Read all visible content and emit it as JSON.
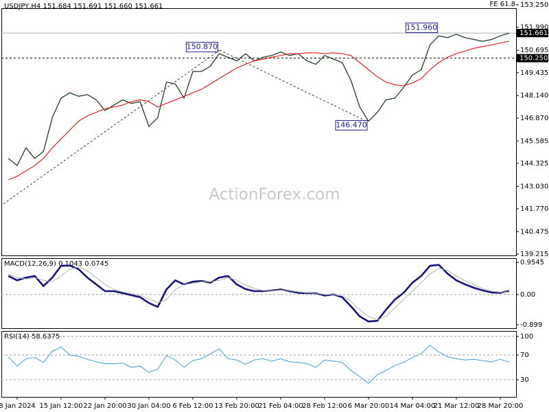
{
  "chart_data": [
    {
      "type": "line",
      "title": "USDJPY,H4  151.684 151.691 151.660 151.661",
      "corner_label": "FE 61.8",
      "watermark": "ActionForex.com",
      "categories": [
        null,
        "8 Jan 2024",
        null,
        null,
        null,
        null,
        "15 Jan 12:00",
        null,
        null,
        null,
        null,
        "22 Jan 20:00",
        null,
        null,
        null,
        null,
        "30 Jan 04:00",
        null,
        null,
        null,
        null,
        "6 Feb 12:00",
        null,
        null,
        null,
        null,
        "13 Feb 20:00",
        null,
        null,
        null,
        null,
        "21 Feb 04:00",
        null,
        null,
        null,
        null,
        "28 Feb 12:00",
        null,
        null,
        null,
        null,
        "6 Mar 20:00",
        null,
        null,
        null,
        null,
        "14 Mar 04:00",
        null,
        null,
        null,
        null,
        "21 Mar 12:00",
        null,
        null,
        null,
        null,
        "28 Mar 20:00",
        null
      ],
      "series": [
        {
          "color": "#1f3d1f",
          "width": 1.3,
          "values": [
            144.6,
            144.2,
            145.2,
            144.6,
            145.0,
            146.9,
            148.0,
            148.3,
            148.1,
            148.2,
            147.9,
            147.3,
            147.6,
            147.9,
            147.7,
            147.8,
            146.4,
            146.9,
            148.9,
            148.8,
            148.0,
            149.5,
            149.5,
            149.8,
            150.5,
            150.3,
            150.1,
            150.5,
            150.1,
            150.3,
            150.4,
            150.6,
            150.4,
            150.5,
            150.1,
            149.9,
            150.4,
            150.2,
            150.0,
            149.0,
            147.5,
            146.7,
            147.2,
            147.9,
            148.0,
            148.6,
            149.3,
            149.6,
            151.0,
            151.5,
            151.4,
            151.6,
            151.4,
            151.3,
            151.2,
            151.3,
            151.5,
            151.661
          ]
        },
        {
          "color": "#e0202a",
          "width": 1.2,
          "values": [
            143.4,
            143.6,
            143.9,
            144.2,
            144.6,
            145.2,
            145.7,
            146.2,
            146.7,
            147.0,
            147.2,
            147.4,
            147.5,
            147.6,
            147.8,
            147.9,
            147.8,
            147.5,
            147.7,
            147.9,
            148.1,
            148.3,
            148.5,
            148.8,
            149.1,
            149.4,
            149.7,
            149.9,
            150.1,
            150.2,
            150.3,
            150.4,
            150.5,
            150.5,
            150.55,
            150.55,
            150.5,
            150.55,
            150.5,
            150.4,
            150.0,
            149.6,
            149.2,
            148.9,
            148.75,
            148.7,
            148.85,
            149.1,
            149.6,
            150.0,
            150.3,
            150.5,
            150.65,
            150.8,
            150.9,
            151.0,
            151.1,
            151.2
          ]
        }
      ],
      "ylim": [
        139.14,
        153.06
      ],
      "yticks": [
        {
          "value": 153.25,
          "label": "153.250"
        },
        {
          "value": 151.99,
          "label": "151.990"
        },
        {
          "value": 150.695,
          "label": "150.695"
        },
        {
          "value": 149.435,
          "label": "149.435"
        },
        {
          "value": 148.14,
          "label": "148.140"
        },
        {
          "value": 146.87,
          "label": "146.870"
        },
        {
          "value": 145.585,
          "label": "145.585"
        },
        {
          "value": 144.325,
          "label": "144.325"
        },
        {
          "value": 143.03,
          "label": "143.030"
        },
        {
          "value": 141.77,
          "label": "141.770"
        },
        {
          "value": 140.475,
          "label": "140.475"
        },
        {
          "value": 139.215,
          "label": "139.215"
        }
      ],
      "levels": [
        {
          "value": 151.661,
          "label": "151.661",
          "style": "solid"
        },
        {
          "value": 150.25,
          "label": "150.250",
          "style": "dashed"
        }
      ],
      "annotations": [
        {
          "x": 24,
          "value": 150.87,
          "label": "150.870"
        },
        {
          "x": 49,
          "value": 151.96,
          "label": "151.960"
        },
        {
          "x": 41,
          "value": 146.47,
          "label": "146.470"
        }
      ]
    },
    {
      "type": "line",
      "title": "MACD(12,26,9) 0.1043 0.0745",
      "zero_line": true,
      "series": [
        {
          "color": "#14147a",
          "width": 2.6,
          "values": [
            0.55,
            0.42,
            0.5,
            0.55,
            0.25,
            0.5,
            0.85,
            0.86,
            0.75,
            0.5,
            0.3,
            0.1,
            0.1,
            0.04,
            -0.02,
            -0.08,
            -0.25,
            -0.37,
            0.15,
            0.42,
            0.3,
            0.38,
            0.4,
            0.35,
            0.5,
            0.55,
            0.3,
            0.16,
            0.1,
            0.1,
            0.12,
            0.15,
            0.1,
            0.05,
            0.04,
            0.04,
            -0.03,
            0.0,
            -0.08,
            -0.35,
            -0.65,
            -0.8,
            -0.78,
            -0.45,
            -0.15,
            0.05,
            0.35,
            0.55,
            0.85,
            0.88,
            0.62,
            0.42,
            0.3,
            0.2,
            0.12,
            0.06,
            0.05,
            0.1043
          ]
        },
        {
          "color": "#b0b0b0",
          "width": 1,
          "values": [
            0.6,
            0.5,
            0.46,
            0.5,
            0.42,
            0.38,
            0.55,
            0.75,
            0.82,
            0.7,
            0.5,
            0.3,
            0.15,
            0.08,
            0.03,
            -0.03,
            -0.12,
            -0.25,
            -0.15,
            0.15,
            0.3,
            0.33,
            0.38,
            0.38,
            0.42,
            0.5,
            0.42,
            0.28,
            0.18,
            0.12,
            0.11,
            0.13,
            0.12,
            0.08,
            0.05,
            0.04,
            0.0,
            -0.01,
            -0.04,
            -0.2,
            -0.45,
            -0.65,
            -0.75,
            -0.65,
            -0.4,
            -0.15,
            0.1,
            0.35,
            0.6,
            0.78,
            0.72,
            0.55,
            0.4,
            0.28,
            0.18,
            0.1,
            0.07,
            0.0745
          ]
        }
      ],
      "ylim": [
        -1.0,
        1.077
      ],
      "yticks": [
        0.9545,
        {
          "value": 0,
          "label": "0.00"
        },
        -0.899
      ]
    },
    {
      "type": "line",
      "title": "RSI(14) 58.6375",
      "grid": true,
      "series": [
        {
          "color": "#3a9fd6",
          "width": 1,
          "values": [
            67,
            52,
            64,
            66,
            58,
            76,
            83,
            70,
            68,
            63,
            59,
            56,
            56,
            57,
            50,
            52,
            42,
            47,
            69,
            62,
            50,
            61,
            64,
            72,
            80,
            64,
            62,
            55,
            62,
            64,
            60,
            64,
            59,
            58,
            56,
            50,
            62,
            60,
            58,
            45,
            35,
            24,
            38,
            45,
            53,
            58,
            66,
            72,
            86,
            75,
            67,
            64,
            62,
            63,
            61,
            59,
            63,
            58.6375
          ]
        }
      ],
      "ylim": [
        2.2,
        108.9
      ],
      "yticks": [
        100,
        70,
        30
      ]
    }
  ]
}
